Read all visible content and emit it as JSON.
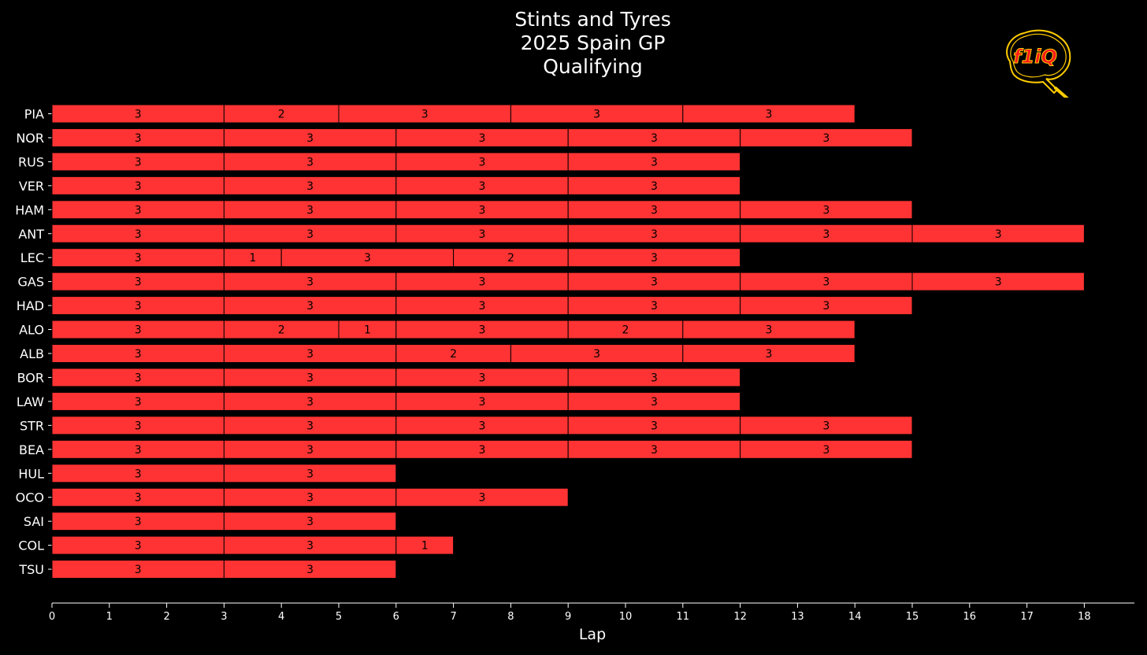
{
  "chart_data": {
    "type": "bar",
    "orientation": "horizontal",
    "stacked": true,
    "title": [
      "Stints and Tyres",
      "2025 Spain GP",
      "Qualifying"
    ],
    "xlabel": "Lap",
    "ylabel": "",
    "xlim": [
      0,
      18.9
    ],
    "xticks": [
      0,
      1,
      2,
      3,
      4,
      5,
      6,
      7,
      8,
      9,
      10,
      11,
      12,
      13,
      14,
      15,
      16,
      17,
      18
    ],
    "grid": false,
    "bar_color": "#ff3333",
    "background": "#000000",
    "drivers": [
      "PIA",
      "NOR",
      "RUS",
      "VER",
      "HAM",
      "ANT",
      "LEC",
      "GAS",
      "HAD",
      "ALO",
      "ALB",
      "BOR",
      "LAW",
      "STR",
      "BEA",
      "HUL",
      "OCO",
      "SAI",
      "COL",
      "TSU"
    ],
    "stints": [
      [
        3,
        2,
        3,
        3,
        3
      ],
      [
        3,
        3,
        3,
        3,
        3
      ],
      [
        3,
        3,
        3,
        3
      ],
      [
        3,
        3,
        3,
        3
      ],
      [
        3,
        3,
        3,
        3,
        3
      ],
      [
        3,
        3,
        3,
        3,
        3,
        3
      ],
      [
        3,
        1,
        3,
        2,
        3
      ],
      [
        3,
        3,
        3,
        3,
        3,
        3
      ],
      [
        3,
        3,
        3,
        3,
        3
      ],
      [
        3,
        2,
        1,
        3,
        2,
        3
      ],
      [
        3,
        3,
        2,
        3,
        3
      ],
      [
        3,
        3,
        3,
        3
      ],
      [
        3,
        3,
        3,
        3
      ],
      [
        3,
        3,
        3,
        3,
        3
      ],
      [
        3,
        3,
        3,
        3,
        3
      ],
      [
        3,
        3
      ],
      [
        3,
        3,
        3
      ],
      [
        3,
        3
      ],
      [
        3,
        3,
        1
      ],
      [
        3,
        3
      ]
    ]
  },
  "logo": {
    "name": "f1iq-logo",
    "text": "f1iQ",
    "colors": [
      "#ffcc00",
      "#ff1a1a"
    ]
  }
}
